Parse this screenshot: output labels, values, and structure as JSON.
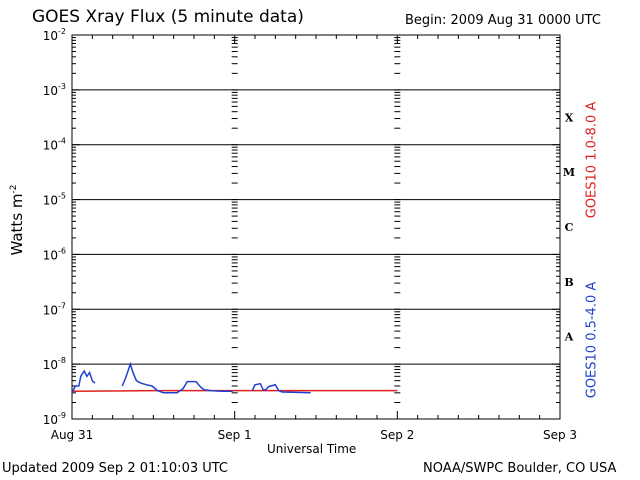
{
  "header": {
    "title": "GOES Xray Flux (5 minute data)",
    "begin": "Begin:  2009 Aug 31 0000 UTC"
  },
  "footer": {
    "updated": "Updated 2009 Sep  2 01:10:03 UTC",
    "credit": "NOAA/SWPC Boulder, CO USA"
  },
  "chart_data": {
    "type": "line",
    "title": "GOES Xray Flux (5 minute data)",
    "xlabel": "Universal Time",
    "ylabel": "Watts m",
    "ylabel_sup": "-2",
    "x_unit": "hours since 2009 Aug 31 0000 UTC",
    "xlim": [
      0,
      72
    ],
    "x_ticks": [
      {
        "label": "Aug 31",
        "x": 0
      },
      {
        "label": "Sep 1",
        "x": 24
      },
      {
        "label": "Sep 2",
        "x": 48
      },
      {
        "label": "Sep 3",
        "x": 72
      }
    ],
    "y_scale": "log",
    "ylim": [
      1e-09,
      0.01
    ],
    "y_ticks": [
      {
        "exp": -9,
        "base": "10",
        "sup": "-9"
      },
      {
        "exp": -8,
        "base": "10",
        "sup": "-8"
      },
      {
        "exp": -7,
        "base": "10",
        "sup": "-7"
      },
      {
        "exp": -6,
        "base": "10",
        "sup": "-6"
      },
      {
        "exp": -5,
        "base": "10",
        "sup": "-5"
      },
      {
        "exp": -4,
        "base": "10",
        "sup": "-4"
      },
      {
        "exp": -3,
        "base": "10",
        "sup": "-3"
      },
      {
        "exp": -2,
        "base": "10",
        "sup": "-2"
      }
    ],
    "flare_classes": [
      {
        "label": "A",
        "exp": -8
      },
      {
        "label": "B",
        "exp": -7
      },
      {
        "label": "C",
        "exp": -6
      },
      {
        "label": "M",
        "exp": -5
      },
      {
        "label": "X",
        "exp": -4
      }
    ],
    "grid": "horizontal lines at each decade",
    "series": [
      {
        "name": "GOES10 1.0-8.0 A",
        "color": "#e02020",
        "points": [
          [
            0,
            3.2e-09
          ],
          [
            12,
            3.3e-09
          ],
          [
            25,
            3.3e-09
          ],
          [
            48,
            3.3e-09
          ]
        ]
      },
      {
        "name": "GOES10 0.5-4.0 A",
        "color": "#2040d0",
        "segments": [
          [
            [
              0,
              3e-09
            ],
            [
              0.5,
              4e-09
            ],
            [
              1.0,
              4e-09
            ],
            [
              1.3,
              6e-09
            ],
            [
              1.8,
              7.5e-09
            ],
            [
              2.2,
              6e-09
            ],
            [
              2.6,
              7e-09
            ],
            [
              3.0,
              5e-09
            ],
            [
              3.4,
              4.5e-09
            ]
          ],
          [
            [
              7.4,
              4e-09
            ],
            [
              7.9,
              5.5e-09
            ],
            [
              8.6,
              1e-08
            ],
            [
              9.0,
              7e-09
            ],
            [
              9.5,
              5e-09
            ],
            [
              10.2,
              4.5e-09
            ],
            [
              11.0,
              4.2e-09
            ],
            [
              11.8,
              4e-09
            ],
            [
              12.6,
              3.3e-09
            ],
            [
              13.5,
              3e-09
            ],
            [
              14.6,
              3e-09
            ],
            [
              15.5,
              3e-09
            ],
            [
              16.4,
              3.6e-09
            ],
            [
              17.0,
              4.8e-09
            ],
            [
              18.3,
              4.8e-09
            ],
            [
              19.0,
              3.8e-09
            ],
            [
              19.5,
              3.4e-09
            ],
            [
              20.5,
              3.3e-09
            ],
            [
              22.0,
              3.2e-09
            ],
            [
              23.7,
              3.2e-09
            ]
          ],
          [
            [
              26.6,
              3.3e-09
            ],
            [
              27.0,
              4.2e-09
            ],
            [
              27.8,
              4.4e-09
            ],
            [
              28.2,
              3.4e-09
            ],
            [
              28.6,
              3.4e-09
            ],
            [
              29.0,
              3.9e-09
            ],
            [
              30.0,
              4.2e-09
            ],
            [
              30.5,
              3.3e-09
            ],
            [
              31.0,
              3.1e-09
            ],
            [
              35.2,
              3e-09
            ]
          ]
        ]
      }
    ]
  }
}
